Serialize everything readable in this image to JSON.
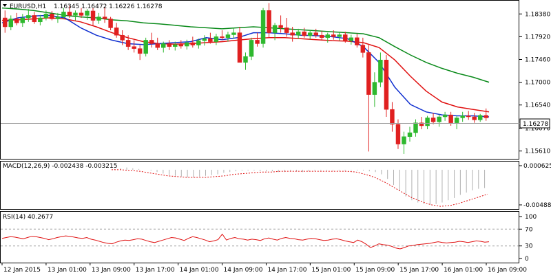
{
  "header": {
    "symbol": "EURUSD,H1",
    "ohlc": "1.16345 1.16472 1.16226 1.16278"
  },
  "macd": {
    "label": "MACD(12,26,9) -0.002438 -0.003215"
  },
  "rsi": {
    "label": "RSI(14) 40.2677"
  },
  "colors": {
    "bull": "#2eb82e",
    "bear": "#e02020",
    "ma_red": "#e01010",
    "ma_blue": "#1030d0",
    "ma_green": "#0a8a1a",
    "ma_thin": "#107010",
    "current_box": "#ffffff"
  },
  "chart_data": [
    {
      "type": "candlestick",
      "title": "EURUSD,H1",
      "price_axis": {
        "ticks": [
          "1.18380",
          "1.17920",
          "1.17460",
          "1.17000",
          "1.16540",
          "1.16070",
          "1.15610"
        ],
        "ylim": [
          1.1548,
          1.1862
        ]
      },
      "current_price": "1.16278",
      "time_axis": [
        "12 Jan 2015",
        "13 Jan 01:00",
        "13 Jan 09:00",
        "13 Jan 17:00",
        "14 Jan 01:00",
        "14 Jan 09:00",
        "14 Jan 17:00",
        "15 Jan 01:00",
        "15 Jan 09:00",
        "15 Jan 17:00",
        "16 Jan 01:00",
        "16 Jan 09:00"
      ],
      "candles_ohlc": [
        [
          1.183,
          1.1845,
          1.18,
          1.1812
        ],
        [
          1.1812,
          1.1835,
          1.1805,
          1.1828
        ],
        [
          1.1828,
          1.184,
          1.1815,
          1.182
        ],
        [
          1.182,
          1.1838,
          1.1812,
          1.183
        ],
        [
          1.183,
          1.1848,
          1.1822,
          1.1835
        ],
        [
          1.1835,
          1.1842,
          1.1818,
          1.1822
        ],
        [
          1.1822,
          1.1836,
          1.1815,
          1.183
        ],
        [
          1.183,
          1.1845,
          1.1825,
          1.1838
        ],
        [
          1.1838,
          1.1844,
          1.1825,
          1.1828
        ],
        [
          1.1828,
          1.184,
          1.182,
          1.1832
        ],
        [
          1.1832,
          1.185,
          1.1828,
          1.1842
        ],
        [
          1.1842,
          1.1855,
          1.183,
          1.1835
        ],
        [
          1.1835,
          1.1845,
          1.1825,
          1.184
        ],
        [
          1.184,
          1.185,
          1.183,
          1.1835
        ],
        [
          1.1835,
          1.1848,
          1.1826,
          1.1844
        ],
        [
          1.1844,
          1.185,
          1.1815,
          1.1825
        ],
        [
          1.1825,
          1.184,
          1.1818,
          1.1832
        ],
        [
          1.1832,
          1.1852,
          1.182,
          1.1828
        ],
        [
          1.1828,
          1.1832,
          1.1805,
          1.181
        ],
        [
          1.181,
          1.182,
          1.179,
          1.1795
        ],
        [
          1.1795,
          1.1805,
          1.1775,
          1.1785
        ],
        [
          1.1785,
          1.1795,
          1.1765,
          1.1772
        ],
        [
          1.1772,
          1.1785,
          1.176,
          1.1768
        ],
        [
          1.1768,
          1.1775,
          1.1745,
          1.1758
        ],
        [
          1.1758,
          1.179,
          1.1752,
          1.1785
        ],
        [
          1.1785,
          1.18,
          1.177,
          1.1778
        ],
        [
          1.1778,
          1.179,
          1.1765,
          1.177
        ],
        [
          1.177,
          1.1782,
          1.176,
          1.1778
        ],
        [
          1.1778,
          1.1785,
          1.1765,
          1.1772
        ],
        [
          1.1772,
          1.1782,
          1.1764,
          1.1776
        ],
        [
          1.1776,
          1.1785,
          1.1768,
          1.1773
        ],
        [
          1.1773,
          1.1786,
          1.1766,
          1.178
        ],
        [
          1.178,
          1.1792,
          1.177,
          1.1775
        ],
        [
          1.1775,
          1.1788,
          1.1768,
          1.1784
        ],
        [
          1.1784,
          1.1795,
          1.1774,
          1.1788
        ],
        [
          1.1788,
          1.18,
          1.1778,
          1.1782
        ],
        [
          1.1782,
          1.1798,
          1.1775,
          1.1792
        ],
        [
          1.1792,
          1.1805,
          1.1785,
          1.179
        ],
        [
          1.179,
          1.1802,
          1.1782,
          1.1796
        ],
        [
          1.1796,
          1.181,
          1.1788,
          1.18
        ],
        [
          1.18,
          1.1812,
          1.176,
          1.174
        ],
        [
          1.174,
          1.176,
          1.1725,
          1.1752
        ],
        [
          1.1752,
          1.179,
          1.1745,
          1.1785
        ],
        [
          1.1785,
          1.18,
          1.1772,
          1.1778
        ],
        [
          1.1778,
          1.185,
          1.177,
          1.1845
        ],
        [
          1.1845,
          1.186,
          1.179,
          1.18
        ],
        [
          1.18,
          1.182,
          1.1785,
          1.1815
        ],
        [
          1.1815,
          1.1835,
          1.18,
          1.181
        ],
        [
          1.181,
          1.183,
          1.1792,
          1.18
        ],
        [
          1.18,
          1.1812,
          1.1782,
          1.1795
        ],
        [
          1.1795,
          1.1808,
          1.1788,
          1.1802
        ],
        [
          1.1802,
          1.181,
          1.179,
          1.1794
        ],
        [
          1.1794,
          1.1805,
          1.1786,
          1.18
        ],
        [
          1.18,
          1.1808,
          1.179,
          1.1795
        ],
        [
          1.1795,
          1.1804,
          1.1784,
          1.179
        ],
        [
          1.179,
          1.18,
          1.178,
          1.1796
        ],
        [
          1.1796,
          1.1805,
          1.1786,
          1.1792
        ],
        [
          1.1792,
          1.18,
          1.1784,
          1.1796
        ],
        [
          1.1796,
          1.1802,
          1.178,
          1.1784
        ],
        [
          1.1784,
          1.1796,
          1.1776,
          1.179
        ],
        [
          1.179,
          1.1798,
          1.177,
          1.1775
        ],
        [
          1.1775,
          1.179,
          1.175,
          1.176
        ],
        [
          1.176,
          1.1775,
          1.156,
          1.1675
        ],
        [
          1.1675,
          1.172,
          1.165,
          1.17
        ],
        [
          1.17,
          1.176,
          1.169,
          1.1745
        ],
        [
          1.1745,
          1.1755,
          1.163,
          1.1645
        ],
        [
          1.1645,
          1.166,
          1.16,
          1.1615
        ],
        [
          1.1615,
          1.1625,
          1.1565,
          1.1575
        ],
        [
          1.1575,
          1.16,
          1.1555,
          1.159
        ],
        [
          1.159,
          1.161,
          1.158,
          1.1598
        ],
        [
          1.1598,
          1.1625,
          1.159,
          1.1618
        ],
        [
          1.1618,
          1.163,
          1.1605,
          1.1612
        ],
        [
          1.1612,
          1.1632,
          1.1605,
          1.1628
        ],
        [
          1.1628,
          1.1638,
          1.1615,
          1.162
        ],
        [
          1.162,
          1.1635,
          1.161,
          1.163
        ],
        [
          1.163,
          1.164,
          1.1622,
          1.1634
        ],
        [
          1.1634,
          1.164,
          1.1612,
          1.1618
        ],
        [
          1.1618,
          1.1632,
          1.1605,
          1.1628
        ],
        [
          1.1628,
          1.164,
          1.162,
          1.1632
        ],
        [
          1.1632,
          1.1642,
          1.1624,
          1.163
        ],
        [
          1.163,
          1.1638,
          1.1618,
          1.1624
        ],
        [
          1.1624,
          1.1636,
          1.162,
          1.1633
        ],
        [
          1.1633,
          1.1647,
          1.1622,
          1.1628
        ]
      ],
      "series": [
        {
          "color": "red",
          "values": [
            1.1825,
            1.1826,
            1.1828,
            1.183,
            1.1828,
            1.1822,
            1.1812,
            1.18,
            1.179,
            1.1782,
            1.1778,
            1.1777,
            1.1778,
            1.178,
            1.1782,
            1.1785,
            1.1788,
            1.179,
            1.179,
            1.1788,
            1.1786,
            1.1784,
            1.1783,
            1.178,
            1.177,
            1.1745,
            1.1712,
            1.1682,
            1.166,
            1.165,
            1.1645,
            1.164
          ]
        },
        {
          "color": "blue",
          "values": [
            1.182,
            1.183,
            1.1834,
            1.1835,
            1.183,
            1.181,
            1.1795,
            1.1785,
            1.1778,
            1.1776,
            1.1778,
            1.178,
            1.1782,
            1.179,
            1.1786,
            1.179,
            1.18,
            1.18,
            1.1798,
            1.1795,
            1.1794,
            1.1792,
            1.1788,
            1.1772,
            1.174,
            1.169,
            1.1655,
            1.164,
            1.1634,
            1.1632,
            1.1632,
            1.163
          ]
        },
        {
          "color": "green",
          "values": [
            1.185,
            1.1848,
            1.1845,
            1.184,
            1.1835,
            1.1832,
            1.183,
            1.1826,
            1.1824,
            1.182,
            1.1818,
            1.1815,
            1.1812,
            1.181,
            1.1808,
            1.181,
            1.1812,
            1.181,
            1.1808,
            1.1806,
            1.1804,
            1.1802,
            1.18,
            1.1798,
            1.179,
            1.1772,
            1.1755,
            1.174,
            1.1728,
            1.1718,
            1.171,
            1.17
          ]
        }
      ]
    },
    {
      "type": "histogram",
      "title": "MACD(12,26,9) -0.002438 -0.003215",
      "y_ticks": [
        "0.000625",
        "-0.004882"
      ],
      "histogram": [
        0.0001,
        0.0002,
        0.0003,
        0.0002,
        0.0001,
        0.0,
        -0.0001,
        -0.0003,
        -0.0005,
        -0.0007,
        -0.0008,
        -0.0009,
        -0.001,
        -0.001,
        -0.0009,
        -0.0008,
        -0.0007,
        -0.0006,
        -0.0004,
        -0.0003,
        -0.0002,
        -0.0001,
        -0.0001,
        -0.0001,
        -0.0002,
        -0.0002,
        -0.0002,
        -0.0003,
        -0.0003,
        -0.0002,
        -0.0002,
        -0.0003,
        -0.0002,
        -0.0001,
        -0.0001,
        -0.0001,
        -0.0001,
        -0.0001,
        -0.0001,
        -0.0001,
        -0.0001,
        -0.0001,
        -0.0002,
        -0.0003,
        -0.0006,
        -0.0012,
        -0.002,
        -0.0028,
        -0.0035,
        -0.004,
        -0.0043,
        -0.0045,
        -0.0046,
        -0.0045,
        -0.0043,
        -0.004,
        -0.0037,
        -0.0033,
        -0.003,
        -0.0027,
        -0.0025,
        -0.0024
      ],
      "signal": [
        0.0,
        0.0,
        -0.0001,
        -0.0002,
        -0.0004,
        -0.0006,
        -0.0008,
        -0.0009,
        -0.001,
        -0.001,
        -0.001,
        -0.0009,
        -0.0008,
        -0.0006,
        -0.0005,
        -0.0004,
        -0.0003,
        -0.0003,
        -0.0002,
        -0.0002,
        -0.0002,
        -0.0002,
        -0.0002,
        -0.0002,
        -0.0002,
        -0.0002,
        -0.0003,
        -0.0006,
        -0.001,
        -0.0016,
        -0.0023,
        -0.003,
        -0.0037,
        -0.0042,
        -0.0046,
        -0.0048,
        -0.0047,
        -0.0044,
        -0.004,
        -0.0036,
        -0.0032
      ]
    },
    {
      "type": "line",
      "title": "RSI(14) 40.2677",
      "y_ticks": [
        "100",
        "70",
        "30",
        "0"
      ],
      "ylim": [
        0,
        100
      ],
      "levels": [
        70,
        30
      ],
      "values": [
        48,
        50,
        52,
        51,
        49,
        47,
        50,
        53,
        52,
        50,
        48,
        45,
        47,
        50,
        52,
        54,
        53,
        51,
        49,
        48,
        50,
        46,
        44,
        41,
        38,
        36,
        35,
        39,
        42,
        44,
        43,
        45,
        47,
        46,
        43,
        40,
        38,
        41,
        44,
        47,
        50,
        49,
        46,
        43,
        48,
        52,
        50,
        47,
        44,
        40,
        42,
        45,
        58,
        44,
        48,
        50,
        47,
        46,
        44,
        46,
        45,
        43,
        47,
        49,
        46,
        44,
        48,
        50,
        48,
        47,
        45,
        44,
        46,
        48,
        47,
        45,
        43,
        44,
        46,
        47,
        45,
        42,
        40,
        38,
        44,
        40,
        34,
        26,
        30,
        35,
        33,
        32,
        29,
        25,
        23,
        26,
        30,
        31,
        33,
        34,
        35,
        36,
        38,
        40,
        38,
        37,
        38,
        39,
        41,
        40,
        38,
        40,
        42,
        41,
        39,
        40
      ]
    }
  ]
}
